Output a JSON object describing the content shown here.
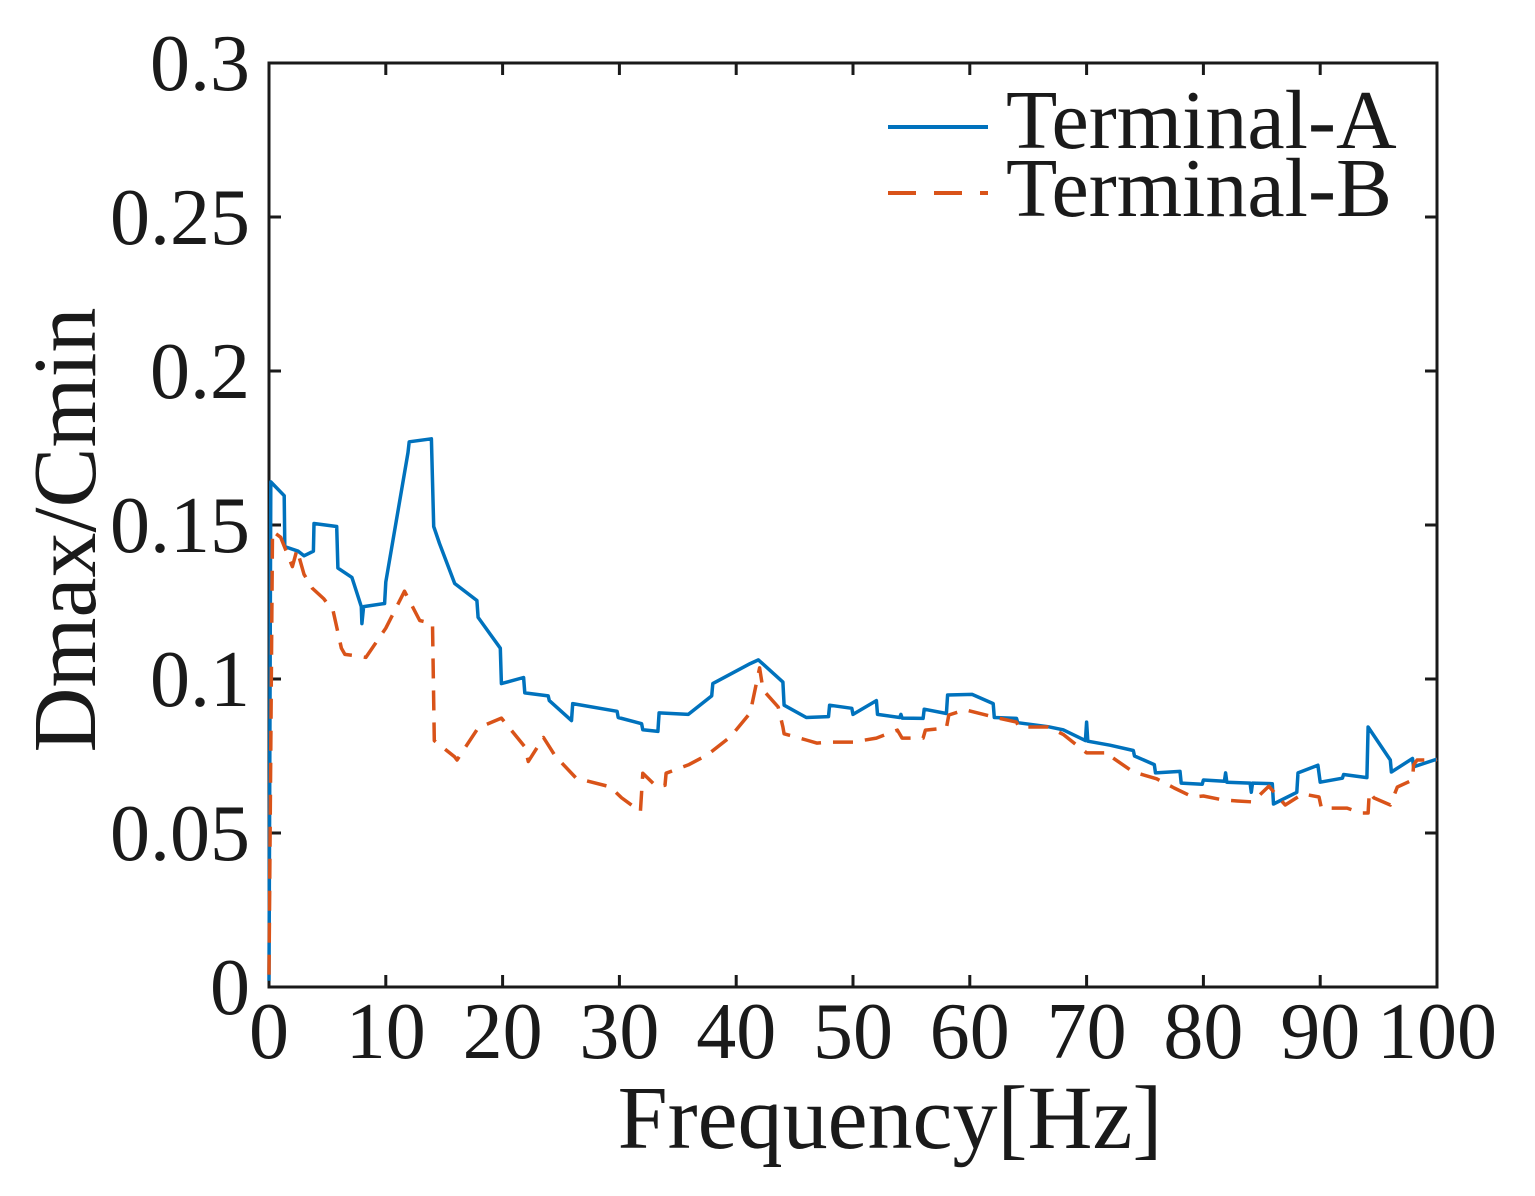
{
  "figure": {
    "background": "#ffffff",
    "axis_color": "#1a1a1a"
  },
  "chart_data": {
    "type": "line",
    "title": "",
    "xlabel": "Frequency[Hz]",
    "ylabel": "Dmax/Cmin",
    "xlim": [
      0,
      100
    ],
    "ylim": [
      0,
      0.3
    ],
    "xticks": [
      0,
      10,
      20,
      30,
      40,
      50,
      60,
      70,
      80,
      90,
      100
    ],
    "xtick_labels": [
      "0",
      "10",
      "20",
      "30",
      "40",
      "50",
      "60",
      "70",
      "80",
      "90",
      "100"
    ],
    "yticks": [
      0,
      0.05,
      0.1,
      0.15,
      0.2,
      0.25,
      0.3
    ],
    "ytick_labels": [
      "0",
      "0.05",
      "0.1",
      "0.15",
      "0.2",
      "0.25",
      "0.3"
    ],
    "grid": false,
    "legend_position": "top-right-inside",
    "series": [
      {
        "name": "Terminal-A",
        "color": "#0072BD",
        "style": "solid",
        "points": [
          [
            0,
            0.002
          ],
          [
            0.15,
            0.164
          ],
          [
            1.3,
            0.1595
          ],
          [
            1.35,
            0.143
          ],
          [
            2.5,
            0.1415
          ],
          [
            3.0,
            0.14
          ],
          [
            3.8,
            0.1415
          ],
          [
            3.85,
            0.1505
          ],
          [
            5.8,
            0.1495
          ],
          [
            5.9,
            0.136
          ],
          [
            7.1,
            0.133
          ],
          [
            7.9,
            0.1235
          ],
          [
            7.95,
            0.118
          ],
          [
            8.1,
            0.1235
          ],
          [
            9.9,
            0.1245
          ],
          [
            10.0,
            0.1315
          ],
          [
            11.9,
            0.1735
          ],
          [
            12.0,
            0.177
          ],
          [
            13.9,
            0.178
          ],
          [
            14.1,
            0.1495
          ],
          [
            14.6,
            0.144
          ],
          [
            15.9,
            0.131
          ],
          [
            17.8,
            0.1255
          ],
          [
            17.9,
            0.12
          ],
          [
            19.8,
            0.11
          ],
          [
            19.9,
            0.0985
          ],
          [
            21.8,
            0.1005
          ],
          [
            21.9,
            0.0955
          ],
          [
            23.9,
            0.0945
          ],
          [
            24.0,
            0.093
          ],
          [
            25.9,
            0.0865
          ],
          [
            26.0,
            0.092
          ],
          [
            29.8,
            0.0895
          ],
          [
            29.9,
            0.0875
          ],
          [
            31.9,
            0.0855
          ],
          [
            32.0,
            0.0835
          ],
          [
            33.3,
            0.083
          ],
          [
            33.4,
            0.089
          ],
          [
            35.9,
            0.0885
          ],
          [
            37.9,
            0.0945
          ],
          [
            38.0,
            0.0985
          ],
          [
            41.2,
            0.105
          ],
          [
            41.9,
            0.1062
          ],
          [
            44.0,
            0.099
          ],
          [
            44.1,
            0.0915
          ],
          [
            46.0,
            0.0875
          ],
          [
            47.9,
            0.0878
          ],
          [
            48.0,
            0.0915
          ],
          [
            49.9,
            0.0905
          ],
          [
            50.0,
            0.0885
          ],
          [
            52.0,
            0.093
          ],
          [
            52.1,
            0.0885
          ],
          [
            54.0,
            0.0875
          ],
          [
            54.1,
            0.0885
          ],
          [
            54.2,
            0.0873
          ],
          [
            56.0,
            0.0872
          ],
          [
            56.1,
            0.0902
          ],
          [
            58.0,
            0.0888
          ],
          [
            58.1,
            0.0948
          ],
          [
            60.2,
            0.095
          ],
          [
            62.0,
            0.092
          ],
          [
            62.1,
            0.0875
          ],
          [
            64.0,
            0.0872
          ],
          [
            64.1,
            0.0858
          ],
          [
            66.7,
            0.0845
          ],
          [
            68.0,
            0.0835
          ],
          [
            69.9,
            0.08
          ],
          [
            70.0,
            0.086
          ],
          [
            70.1,
            0.0798
          ],
          [
            72.0,
            0.0785
          ],
          [
            74.0,
            0.0768
          ],
          [
            74.1,
            0.075
          ],
          [
            75.8,
            0.0722
          ],
          [
            75.9,
            0.0695
          ],
          [
            78.0,
            0.07
          ],
          [
            78.1,
            0.0662
          ],
          [
            79.9,
            0.0658
          ],
          [
            80.0,
            0.0672
          ],
          [
            81.8,
            0.0668
          ],
          [
            81.9,
            0.0695
          ],
          [
            82.0,
            0.0665
          ],
          [
            84.0,
            0.0662
          ],
          [
            84.1,
            0.0632
          ],
          [
            84.2,
            0.0662
          ],
          [
            85.9,
            0.066
          ],
          [
            86.0,
            0.0594
          ],
          [
            88.0,
            0.0632
          ],
          [
            88.1,
            0.0695
          ],
          [
            89.8,
            0.072
          ],
          [
            90.0,
            0.0665
          ],
          [
            91.9,
            0.0678
          ],
          [
            92.0,
            0.069
          ],
          [
            94.0,
            0.068
          ],
          [
            94.1,
            0.0844
          ],
          [
            96.0,
            0.0737
          ],
          [
            96.1,
            0.0698
          ],
          [
            97.9,
            0.0742
          ],
          [
            98.0,
            0.0715
          ],
          [
            100,
            0.074
          ]
        ]
      },
      {
        "name": "Terminal-B",
        "color": "#D95319",
        "style": "dashed",
        "points": [
          [
            0,
            0.004
          ],
          [
            0.3,
            0.148
          ],
          [
            1.0,
            0.146
          ],
          [
            2.0,
            0.1365
          ],
          [
            2.4,
            0.142
          ],
          [
            3.0,
            0.134
          ],
          [
            3.7,
            0.1295
          ],
          [
            4.7,
            0.126
          ],
          [
            5.5,
            0.122
          ],
          [
            6.2,
            0.11
          ],
          [
            6.5,
            0.108
          ],
          [
            7.5,
            0.1075
          ],
          [
            8.3,
            0.107
          ],
          [
            10.0,
            0.1165
          ],
          [
            11.6,
            0.1285
          ],
          [
            12.9,
            0.119
          ],
          [
            14.0,
            0.118
          ],
          [
            14.15,
            0.08
          ],
          [
            15.9,
            0.0747
          ],
          [
            16.1,
            0.0737
          ],
          [
            17.9,
            0.0841
          ],
          [
            19.9,
            0.0873
          ],
          [
            21.9,
            0.078
          ],
          [
            22.2,
            0.0732
          ],
          [
            23.5,
            0.081
          ],
          [
            24.5,
            0.075
          ],
          [
            26.3,
            0.0678
          ],
          [
            29.2,
            0.065
          ],
          [
            30.2,
            0.0614
          ],
          [
            31.6,
            0.0575
          ],
          [
            31.8,
            0.0569
          ],
          [
            32.0,
            0.0694
          ],
          [
            33.2,
            0.065
          ],
          [
            33.9,
            0.0655
          ],
          [
            34.0,
            0.0694
          ],
          [
            35.9,
            0.0721
          ],
          [
            37.5,
            0.0753
          ],
          [
            39.5,
            0.0812
          ],
          [
            41.2,
            0.089
          ],
          [
            42.0,
            0.1036
          ],
          [
            42.3,
            0.0964
          ],
          [
            43.6,
            0.0909
          ],
          [
            44.0,
            0.0844
          ],
          [
            44.1,
            0.0822
          ],
          [
            46.0,
            0.0802
          ],
          [
            46.9,
            0.0792
          ],
          [
            48.0,
            0.0795
          ],
          [
            50.0,
            0.0795
          ],
          [
            52.0,
            0.0808
          ],
          [
            53.8,
            0.0834
          ],
          [
            54.2,
            0.0808
          ],
          [
            56.0,
            0.0808
          ],
          [
            56.2,
            0.0834
          ],
          [
            58.0,
            0.0841
          ],
          [
            58.2,
            0.0883
          ],
          [
            59.6,
            0.09
          ],
          [
            62.0,
            0.0877
          ],
          [
            64.0,
            0.086
          ],
          [
            64.2,
            0.0844
          ],
          [
            66.7,
            0.0844
          ],
          [
            68.0,
            0.082
          ],
          [
            70.0,
            0.076
          ],
          [
            72.0,
            0.076
          ],
          [
            72.2,
            0.0745
          ],
          [
            74.0,
            0.0698
          ],
          [
            76.0,
            0.0676
          ],
          [
            77.5,
            0.0646
          ],
          [
            79.1,
            0.0617
          ],
          [
            80.0,
            0.062
          ],
          [
            81.7,
            0.0607
          ],
          [
            82.9,
            0.0604
          ],
          [
            84.2,
            0.0601
          ],
          [
            85.6,
            0.0652
          ],
          [
            87.0,
            0.0591
          ],
          [
            88.5,
            0.0627
          ],
          [
            89.9,
            0.0617
          ],
          [
            90.1,
            0.0581
          ],
          [
            92.3,
            0.0581
          ],
          [
            93.5,
            0.0565
          ],
          [
            94.1,
            0.0565
          ],
          [
            94.2,
            0.0633
          ],
          [
            94.6,
            0.0614
          ],
          [
            96.0,
            0.0591
          ],
          [
            96.6,
            0.0649
          ],
          [
            97.9,
            0.0672
          ],
          [
            98.0,
            0.0721
          ],
          [
            98.3,
            0.0737
          ],
          [
            100,
            0.0737
          ]
        ]
      }
    ]
  }
}
